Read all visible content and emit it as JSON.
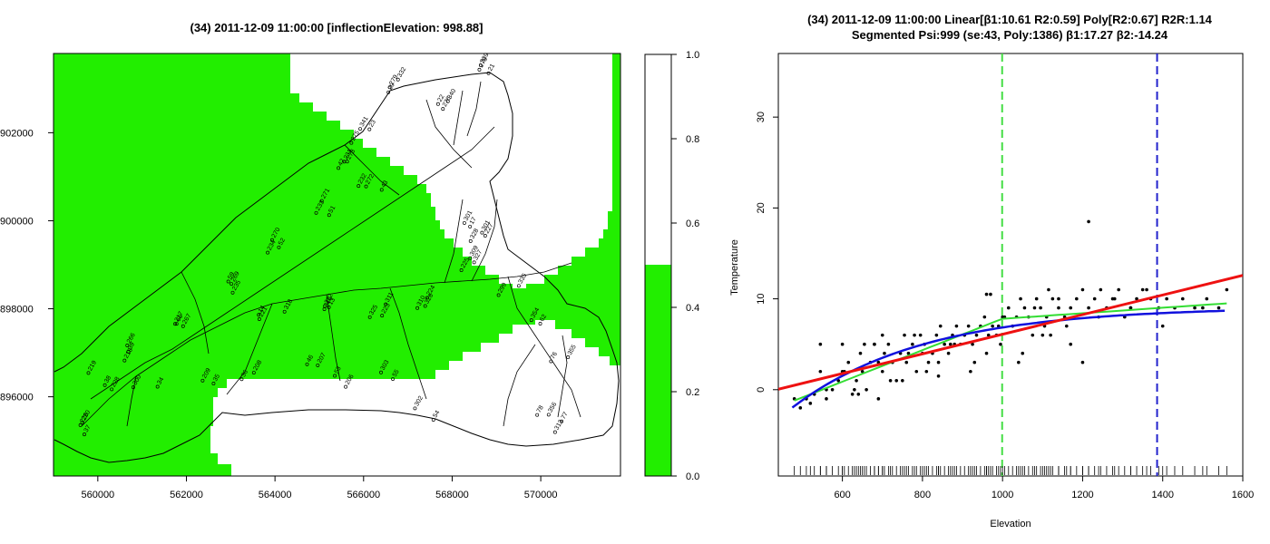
{
  "chart_data": [
    {
      "type": "heatmap",
      "title": "(34) 2011-12-09 11:00:00 [inflectionElevation: 998.88]",
      "xlabel": "",
      "ylabel": "",
      "xlim": [
        559000,
        571800
      ],
      "ylim": [
        4894200,
        4903800
      ],
      "x_ticks": [
        560000,
        562000,
        564000,
        566000,
        568000,
        570000
      ],
      "y_ticks": [
        4896000,
        4898000,
        4900000,
        4902000
      ],
      "y_tick_labels": [
        "4896000",
        "4898000",
        "4900000",
        "4902000"
      ],
      "colors": {
        "low": "#22ee00",
        "high": "#ffffff",
        "lines": "#000000"
      },
      "colorbar": {
        "ticks": [
          "0.0",
          "0.2",
          "0.4",
          "0.6",
          "0.8",
          "1.0"
        ],
        "threshold": 0.5
      },
      "station_labels": [
        "279",
        "278",
        "276",
        "275",
        "273",
        "272",
        "271",
        "270",
        "269",
        "267",
        "266",
        "228",
        "226",
        "318",
        "316",
        "311",
        "310",
        "309",
        "301",
        "299",
        "62",
        "76",
        "78",
        "77",
        "55",
        "54",
        "53",
        "46",
        "36",
        "35",
        "34",
        "17",
        "20",
        "21",
        "22",
        "23",
        "42",
        "43",
        "51",
        "52",
        "59",
        "60",
        "39",
        "38",
        "37",
        "14",
        "13",
        "325",
        "326",
        "327",
        "328",
        "335",
        "354",
        "355",
        "356",
        "313",
        "303",
        "302",
        "206",
        "207",
        "208",
        "209",
        "300",
        "301",
        "332",
        "339",
        "340",
        "341",
        "231",
        "232",
        "233",
        "234",
        "235",
        "217",
        "218",
        "219",
        "220",
        "221",
        "222",
        "223",
        "224",
        "225",
        "227"
      ]
    },
    {
      "type": "scatter",
      "title_lines": [
        "(34) 2011-12-09 11:00:00 Linear[β1:10.61 R2:0.59] Poly[R2:0.67] R2R:1.14",
        "Segmented Psi:999 (se:43, Poly:1386) β1:17.27 β2:-14.24"
      ],
      "xlabel": "Elevation",
      "ylabel": "Temperature",
      "xlim": [
        440,
        1600
      ],
      "ylim": [
        -9.5,
        37
      ],
      "x_ticks": [
        600,
        800,
        1000,
        1200,
        1400,
        1600
      ],
      "y_ticks": [
        0,
        10,
        20,
        30
      ],
      "colors": {
        "points": "#000000",
        "linear": "#ee1111",
        "poly": "#1111dd",
        "segmented": "#33dd33",
        "vline_green": "#44dd44",
        "vline_blue": "#2222cc"
      },
      "vlines": [
        999,
        1386
      ],
      "linear": {
        "intercept": -4.7,
        "slope": 0.0108
      },
      "series": [
        {
          "type": "points",
          "x": [
            480,
            495,
            510,
            530,
            545,
            560,
            575,
            590,
            605,
            615,
            625,
            635,
            645,
            650,
            660,
            670,
            680,
            690,
            700,
            705,
            715,
            725,
            735,
            745,
            755,
            765,
            775,
            785,
            795,
            805,
            815,
            825,
            835,
            845,
            855,
            865,
            875,
            885,
            895,
            905,
            915,
            925,
            935,
            945,
            955,
            965,
            975,
            985,
            995,
            1005,
            1015,
            1025,
            1035,
            1045,
            1055,
            1065,
            1075,
            1085,
            1095,
            1105,
            1115,
            1125,
            1140,
            1155,
            1170,
            1185,
            1200,
            1215,
            1230,
            1245,
            1260,
            1275,
            1290,
            1305,
            1320,
            1335,
            1350,
            1370,
            1390,
            1410,
            1430,
            1450,
            1480,
            1510,
            1540,
            1560,
            520,
            560,
            600,
            640,
            680,
            720,
            760,
            800,
            840,
            880,
            920,
            960,
            1000,
            1040,
            1080,
            1120,
            1160,
            1200,
            1240,
            1280,
            1320,
            1360,
            1400,
            1500,
            630,
            690,
            750,
            810,
            870,
            930,
            990,
            1050,
            1110,
            1170,
            1215,
            1100,
            1140,
            970,
            960,
            840,
            780,
            700,
            655,
            600,
            545
          ],
          "y": [
            -1,
            -2,
            -1,
            -0.5,
            2,
            -1,
            0,
            1,
            2,
            3,
            -0.5,
            1,
            4,
            2,
            0,
            3,
            5,
            -1,
            2,
            4,
            5,
            3,
            1,
            4,
            6,
            4,
            5,
            2,
            6,
            5,
            3,
            4,
            6,
            7,
            5,
            4,
            6,
            7,
            5,
            6,
            7,
            5,
            6,
            7,
            8,
            6,
            7,
            6,
            5,
            8,
            9,
            7,
            8,
            10,
            9,
            8,
            6,
            10,
            9,
            7,
            11,
            10,
            9,
            8,
            9,
            10,
            11,
            9,
            10,
            11,
            9,
            10,
            11,
            8,
            9,
            10,
            11,
            10,
            9,
            10,
            9,
            10,
            9,
            10,
            9,
            11,
            -1.5,
            0,
            2,
            -0.5,
            5,
            1,
            3,
            4,
            1.5,
            5,
            2,
            4,
            8,
            3,
            9,
            6,
            7,
            3,
            8,
            10,
            9,
            11,
            7,
            9,
            0,
            3,
            1,
            2,
            5,
            3,
            7,
            4,
            8,
            5,
            18.5,
            6,
            10,
            10.5,
            10.5,
            3,
            6,
            6,
            5,
            5,
            5
          ]
        }
      ]
    }
  ]
}
